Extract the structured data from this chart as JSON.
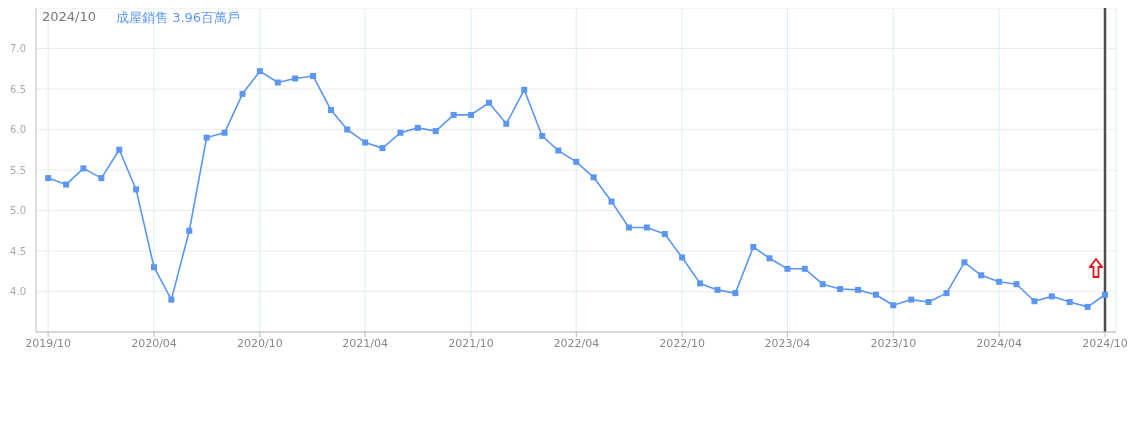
{
  "chart_data": {
    "type": "line",
    "title": "2024/10",
    "x": [
      "2019-10",
      "2019-11",
      "2019-12",
      "2020-01",
      "2020-02",
      "2020-03",
      "2020-04",
      "2020-05",
      "2020-06",
      "2020-07",
      "2020-08",
      "2020-09",
      "2020-10",
      "2020-11",
      "2020-12",
      "2021-01",
      "2021-02",
      "2021-03",
      "2021-04",
      "2021-05",
      "2021-06",
      "2021-07",
      "2021-08",
      "2021-09",
      "2021-10",
      "2021-11",
      "2021-12",
      "2022-01",
      "2022-02",
      "2022-03",
      "2022-04",
      "2022-05",
      "2022-06",
      "2022-07",
      "2022-08",
      "2022-09",
      "2022-10",
      "2022-11",
      "2022-12",
      "2023-01",
      "2023-02",
      "2023-03",
      "2023-04",
      "2023-05",
      "2023-06",
      "2023-07",
      "2023-08",
      "2023-09",
      "2023-10",
      "2023-11",
      "2023-12",
      "2024-01",
      "2024-02",
      "2024-03",
      "2024-04",
      "2024-05",
      "2024-06",
      "2024-07",
      "2024-08",
      "2024-09",
      "2024-10"
    ],
    "series": [
      {
        "name": "成屋銷售 3.96百萬戶",
        "color": "#5a96f2",
        "values": [
          5.4,
          5.32,
          5.52,
          5.4,
          5.75,
          5.26,
          4.3,
          3.9,
          4.75,
          5.9,
          5.96,
          6.44,
          6.72,
          6.58,
          6.63,
          6.66,
          6.24,
          6.0,
          5.84,
          5.77,
          5.96,
          6.02,
          5.98,
          6.18,
          6.18,
          6.33,
          6.07,
          6.49,
          5.92,
          5.74,
          5.6,
          5.41,
          5.11,
          4.79,
          4.79,
          4.71,
          4.42,
          4.1,
          4.02,
          3.98,
          4.55,
          4.41,
          4.28,
          4.28,
          4.09,
          4.03,
          4.02,
          3.96,
          3.83,
          3.9,
          3.87,
          3.98,
          4.36,
          4.2,
          4.12,
          4.09,
          3.88,
          3.94,
          3.87,
          3.81,
          3.96
        ]
      }
    ],
    "xlim": [
      "2019-09-10",
      "2024-10-20"
    ],
    "xticks": [
      {
        "value": "2019-10",
        "label": "2019/10"
      },
      {
        "value": "2020-04",
        "label": "2020/04"
      },
      {
        "value": "2020-10",
        "label": "2020/10"
      },
      {
        "value": "2021-04",
        "label": "2021/04"
      },
      {
        "value": "2021-10",
        "label": "2021/10"
      },
      {
        "value": "2022-04",
        "label": "2022/04"
      },
      {
        "value": "2022-10",
        "label": "2022/10"
      },
      {
        "value": "2023-04",
        "label": "2023/04"
      },
      {
        "value": "2023-10",
        "label": "2023/10"
      },
      {
        "value": "2024-04",
        "label": "2024/04"
      },
      {
        "value": "2024-10",
        "label": "2024/10"
      }
    ],
    "ylim": [
      3.5,
      7.5
    ],
    "yticks": [
      {
        "value": 4,
        "label": "4.0"
      },
      {
        "value": 4.5,
        "label": "4.5"
      },
      {
        "value": 5,
        "label": "5.0"
      },
      {
        "value": 5.5,
        "label": "5.5"
      },
      {
        "value": 6,
        "label": "6.0"
      },
      {
        "value": 6.5,
        "label": "6.5"
      },
      {
        "value": 7,
        "label": "7.0"
      }
    ],
    "ref_lines": [
      {
        "axis": "x",
        "value": "2024-10",
        "color": "#4d4d4d"
      }
    ],
    "grid": true,
    "legend": "top left",
    "marker": "square"
  }
}
